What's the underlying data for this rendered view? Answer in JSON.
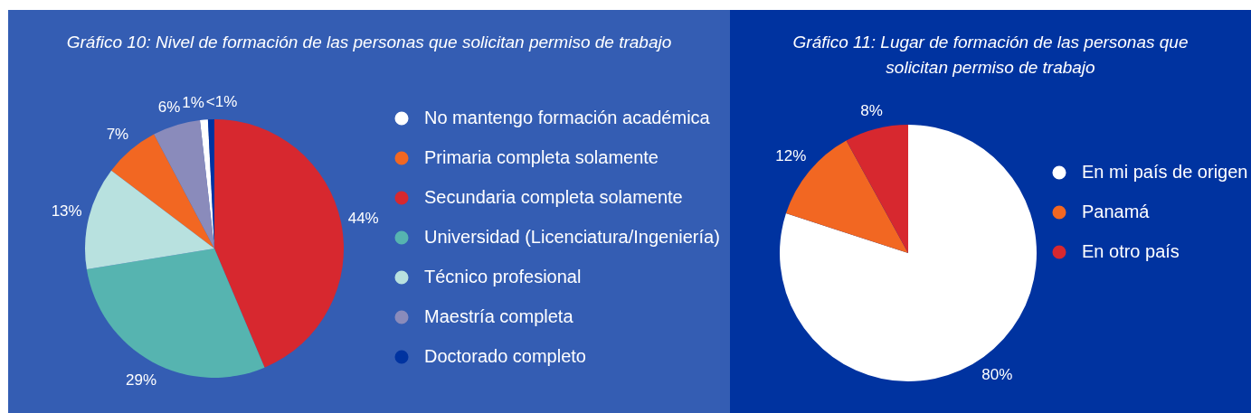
{
  "chart_data": [
    {
      "type": "pie",
      "title": "Gráfico 10: Nivel de formación de las personas que solicitan permiso de trabajo",
      "categories": [
        "No mantengo formación académica",
        "Primaria completa solamente",
        "Secundaria completa solamente",
        "Universidad (Licenciatura/Ingeniería)",
        "Técnico profesional",
        "Maestría completa",
        "Doctorado completo"
      ],
      "values": [
        1,
        7,
        44,
        29,
        13,
        6,
        0.8
      ],
      "value_labels": [
        "1%",
        "7%",
        "44%",
        "29%",
        "13%",
        "6%",
        "<1%"
      ],
      "colors": [
        "#ffffff",
        "#f26722",
        "#d7282f",
        "#56b4b0",
        "#b8e1df",
        "#8a8bbb",
        "#0033a0"
      ],
      "legend": "right"
    },
    {
      "type": "pie",
      "title": "Gráfico 11: Lugar de formación de las personas que solicitan permiso de trabajo",
      "categories": [
        "En mi país de origen",
        "Panamá",
        "En otro país"
      ],
      "values": [
        80,
        12,
        8
      ],
      "value_labels": [
        "80%",
        "12%",
        "8%"
      ],
      "colors": [
        "#ffffff",
        "#f26722",
        "#d7282f"
      ],
      "legend": "right"
    }
  ]
}
